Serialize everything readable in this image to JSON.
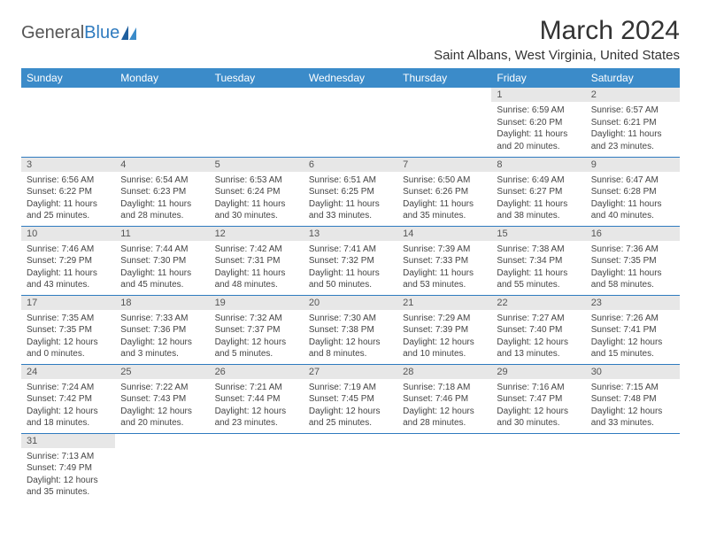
{
  "brand": {
    "part1": "General",
    "part2": "Blue"
  },
  "title": "March 2024",
  "location": "Saint Albans, West Virginia, United States",
  "colors": {
    "header_bg": "#3b8bc9",
    "header_text": "#ffffff",
    "daynum_bg": "#e7e7e7",
    "rule": "#2f7bbf",
    "logo_blue": "#2f7bbf",
    "text": "#444444"
  },
  "weekdays": [
    "Sunday",
    "Monday",
    "Tuesday",
    "Wednesday",
    "Thursday",
    "Friday",
    "Saturday"
  ],
  "weeks": [
    [
      {
        "day": "",
        "sunrise": "",
        "sunset": "",
        "daylight": ""
      },
      {
        "day": "",
        "sunrise": "",
        "sunset": "",
        "daylight": ""
      },
      {
        "day": "",
        "sunrise": "",
        "sunset": "",
        "daylight": ""
      },
      {
        "day": "",
        "sunrise": "",
        "sunset": "",
        "daylight": ""
      },
      {
        "day": "",
        "sunrise": "",
        "sunset": "",
        "daylight": ""
      },
      {
        "day": "1",
        "sunrise": "Sunrise: 6:59 AM",
        "sunset": "Sunset: 6:20 PM",
        "daylight": "Daylight: 11 hours and 20 minutes."
      },
      {
        "day": "2",
        "sunrise": "Sunrise: 6:57 AM",
        "sunset": "Sunset: 6:21 PM",
        "daylight": "Daylight: 11 hours and 23 minutes."
      }
    ],
    [
      {
        "day": "3",
        "sunrise": "Sunrise: 6:56 AM",
        "sunset": "Sunset: 6:22 PM",
        "daylight": "Daylight: 11 hours and 25 minutes."
      },
      {
        "day": "4",
        "sunrise": "Sunrise: 6:54 AM",
        "sunset": "Sunset: 6:23 PM",
        "daylight": "Daylight: 11 hours and 28 minutes."
      },
      {
        "day": "5",
        "sunrise": "Sunrise: 6:53 AM",
        "sunset": "Sunset: 6:24 PM",
        "daylight": "Daylight: 11 hours and 30 minutes."
      },
      {
        "day": "6",
        "sunrise": "Sunrise: 6:51 AM",
        "sunset": "Sunset: 6:25 PM",
        "daylight": "Daylight: 11 hours and 33 minutes."
      },
      {
        "day": "7",
        "sunrise": "Sunrise: 6:50 AM",
        "sunset": "Sunset: 6:26 PM",
        "daylight": "Daylight: 11 hours and 35 minutes."
      },
      {
        "day": "8",
        "sunrise": "Sunrise: 6:49 AM",
        "sunset": "Sunset: 6:27 PM",
        "daylight": "Daylight: 11 hours and 38 minutes."
      },
      {
        "day": "9",
        "sunrise": "Sunrise: 6:47 AM",
        "sunset": "Sunset: 6:28 PM",
        "daylight": "Daylight: 11 hours and 40 minutes."
      }
    ],
    [
      {
        "day": "10",
        "sunrise": "Sunrise: 7:46 AM",
        "sunset": "Sunset: 7:29 PM",
        "daylight": "Daylight: 11 hours and 43 minutes."
      },
      {
        "day": "11",
        "sunrise": "Sunrise: 7:44 AM",
        "sunset": "Sunset: 7:30 PM",
        "daylight": "Daylight: 11 hours and 45 minutes."
      },
      {
        "day": "12",
        "sunrise": "Sunrise: 7:42 AM",
        "sunset": "Sunset: 7:31 PM",
        "daylight": "Daylight: 11 hours and 48 minutes."
      },
      {
        "day": "13",
        "sunrise": "Sunrise: 7:41 AM",
        "sunset": "Sunset: 7:32 PM",
        "daylight": "Daylight: 11 hours and 50 minutes."
      },
      {
        "day": "14",
        "sunrise": "Sunrise: 7:39 AM",
        "sunset": "Sunset: 7:33 PM",
        "daylight": "Daylight: 11 hours and 53 minutes."
      },
      {
        "day": "15",
        "sunrise": "Sunrise: 7:38 AM",
        "sunset": "Sunset: 7:34 PM",
        "daylight": "Daylight: 11 hours and 55 minutes."
      },
      {
        "day": "16",
        "sunrise": "Sunrise: 7:36 AM",
        "sunset": "Sunset: 7:35 PM",
        "daylight": "Daylight: 11 hours and 58 minutes."
      }
    ],
    [
      {
        "day": "17",
        "sunrise": "Sunrise: 7:35 AM",
        "sunset": "Sunset: 7:35 PM",
        "daylight": "Daylight: 12 hours and 0 minutes."
      },
      {
        "day": "18",
        "sunrise": "Sunrise: 7:33 AM",
        "sunset": "Sunset: 7:36 PM",
        "daylight": "Daylight: 12 hours and 3 minutes."
      },
      {
        "day": "19",
        "sunrise": "Sunrise: 7:32 AM",
        "sunset": "Sunset: 7:37 PM",
        "daylight": "Daylight: 12 hours and 5 minutes."
      },
      {
        "day": "20",
        "sunrise": "Sunrise: 7:30 AM",
        "sunset": "Sunset: 7:38 PM",
        "daylight": "Daylight: 12 hours and 8 minutes."
      },
      {
        "day": "21",
        "sunrise": "Sunrise: 7:29 AM",
        "sunset": "Sunset: 7:39 PM",
        "daylight": "Daylight: 12 hours and 10 minutes."
      },
      {
        "day": "22",
        "sunrise": "Sunrise: 7:27 AM",
        "sunset": "Sunset: 7:40 PM",
        "daylight": "Daylight: 12 hours and 13 minutes."
      },
      {
        "day": "23",
        "sunrise": "Sunrise: 7:26 AM",
        "sunset": "Sunset: 7:41 PM",
        "daylight": "Daylight: 12 hours and 15 minutes."
      }
    ],
    [
      {
        "day": "24",
        "sunrise": "Sunrise: 7:24 AM",
        "sunset": "Sunset: 7:42 PM",
        "daylight": "Daylight: 12 hours and 18 minutes."
      },
      {
        "day": "25",
        "sunrise": "Sunrise: 7:22 AM",
        "sunset": "Sunset: 7:43 PM",
        "daylight": "Daylight: 12 hours and 20 minutes."
      },
      {
        "day": "26",
        "sunrise": "Sunrise: 7:21 AM",
        "sunset": "Sunset: 7:44 PM",
        "daylight": "Daylight: 12 hours and 23 minutes."
      },
      {
        "day": "27",
        "sunrise": "Sunrise: 7:19 AM",
        "sunset": "Sunset: 7:45 PM",
        "daylight": "Daylight: 12 hours and 25 minutes."
      },
      {
        "day": "28",
        "sunrise": "Sunrise: 7:18 AM",
        "sunset": "Sunset: 7:46 PM",
        "daylight": "Daylight: 12 hours and 28 minutes."
      },
      {
        "day": "29",
        "sunrise": "Sunrise: 7:16 AM",
        "sunset": "Sunset: 7:47 PM",
        "daylight": "Daylight: 12 hours and 30 minutes."
      },
      {
        "day": "30",
        "sunrise": "Sunrise: 7:15 AM",
        "sunset": "Sunset: 7:48 PM",
        "daylight": "Daylight: 12 hours and 33 minutes."
      }
    ],
    [
      {
        "day": "31",
        "sunrise": "Sunrise: 7:13 AM",
        "sunset": "Sunset: 7:49 PM",
        "daylight": "Daylight: 12 hours and 35 minutes."
      },
      {
        "day": "",
        "sunrise": "",
        "sunset": "",
        "daylight": ""
      },
      {
        "day": "",
        "sunrise": "",
        "sunset": "",
        "daylight": ""
      },
      {
        "day": "",
        "sunrise": "",
        "sunset": "",
        "daylight": ""
      },
      {
        "day": "",
        "sunrise": "",
        "sunset": "",
        "daylight": ""
      },
      {
        "day": "",
        "sunrise": "",
        "sunset": "",
        "daylight": ""
      },
      {
        "day": "",
        "sunrise": "",
        "sunset": "",
        "daylight": ""
      }
    ]
  ]
}
